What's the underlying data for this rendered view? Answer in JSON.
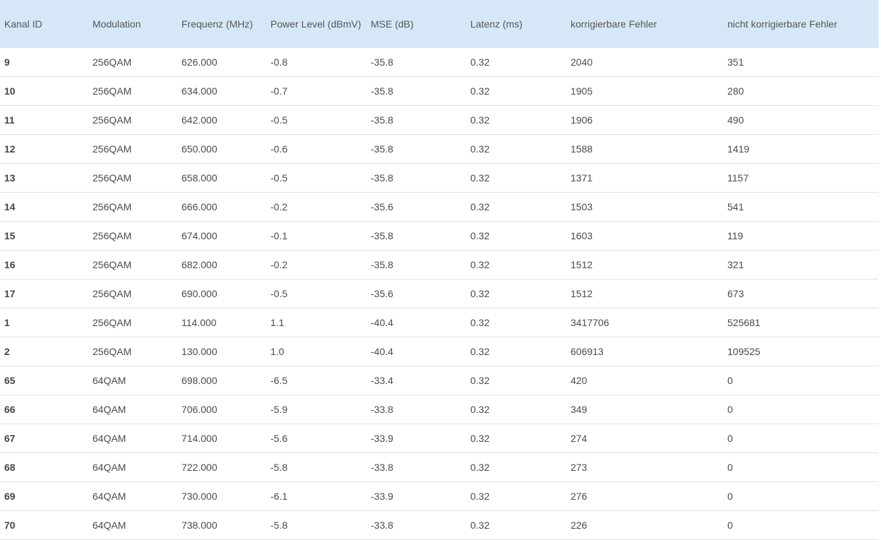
{
  "colors": {
    "header_bg": "#d6e8f7",
    "text": "#4a4a4a",
    "row_border": "#e2e2e2"
  },
  "table": {
    "headers": [
      "Kanal ID",
      "Modulation",
      "Frequenz (MHz)",
      "Power Level (dBmV)",
      "MSE (dB)",
      "Latenz (ms)",
      "korrigierbare Fehler",
      "nicht korrigierbare Fehler"
    ],
    "rows": [
      [
        "9",
        "256QAM",
        "626.000",
        "-0.8",
        "-35.8",
        "0.32",
        "2040",
        "351"
      ],
      [
        "10",
        "256QAM",
        "634.000",
        "-0.7",
        "-35.8",
        "0.32",
        "1905",
        "280"
      ],
      [
        "11",
        "256QAM",
        "642.000",
        "-0.5",
        "-35.8",
        "0.32",
        "1906",
        "490"
      ],
      [
        "12",
        "256QAM",
        "650.000",
        "-0.6",
        "-35.8",
        "0.32",
        "1588",
        "1419"
      ],
      [
        "13",
        "256QAM",
        "658.000",
        "-0.5",
        "-35.8",
        "0.32",
        "1371",
        "1157"
      ],
      [
        "14",
        "256QAM",
        "666.000",
        "-0.2",
        "-35.6",
        "0.32",
        "1503",
        "541"
      ],
      [
        "15",
        "256QAM",
        "674.000",
        "-0.1",
        "-35.8",
        "0.32",
        "1603",
        "119"
      ],
      [
        "16",
        "256QAM",
        "682.000",
        "-0.2",
        "-35.8",
        "0.32",
        "1512",
        "321"
      ],
      [
        "17",
        "256QAM",
        "690.000",
        "-0.5",
        "-35.6",
        "0.32",
        "1512",
        "673"
      ],
      [
        "1",
        "256QAM",
        "114.000",
        "1.1",
        "-40.4",
        "0.32",
        "3417706",
        "525681"
      ],
      [
        "2",
        "256QAM",
        "130.000",
        "1.0",
        "-40.4",
        "0.32",
        "606913",
        "109525"
      ],
      [
        "65",
        "64QAM",
        "698.000",
        "-6.5",
        "-33.4",
        "0.32",
        "420",
        "0"
      ],
      [
        "66",
        "64QAM",
        "706.000",
        "-5.9",
        "-33.8",
        "0.32",
        "349",
        "0"
      ],
      [
        "67",
        "64QAM",
        "714.000",
        "-5.6",
        "-33.9",
        "0.32",
        "274",
        "0"
      ],
      [
        "68",
        "64QAM",
        "722.000",
        "-5.8",
        "-33.8",
        "0.32",
        "273",
        "0"
      ],
      [
        "69",
        "64QAM",
        "730.000",
        "-6.1",
        "-33.9",
        "0.32",
        "276",
        "0"
      ],
      [
        "70",
        "64QAM",
        "738.000",
        "-5.8",
        "-33.8",
        "0.32",
        "226",
        "0"
      ]
    ]
  }
}
